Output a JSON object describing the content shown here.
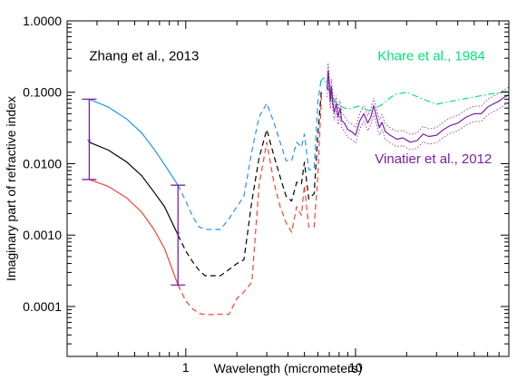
{
  "chart_data": {
    "type": "line",
    "xlabel": "Wavelength (micrometers)",
    "ylabel": "Imaginary part of refractive index",
    "xscale": "log",
    "yscale": "log",
    "xlim": [
      0.2,
      80
    ],
    "ylim": [
      2e-05,
      1.0
    ],
    "x_tick_labels": [
      {
        "value": 1,
        "label": "1"
      },
      {
        "value": 10,
        "label": "10"
      }
    ],
    "y_tick_labels": [
      {
        "value": 1.0,
        "label": "1.0000"
      },
      {
        "value": 0.1,
        "label": "0.1000"
      },
      {
        "value": 0.01,
        "label": "0.0100"
      },
      {
        "value": 0.001,
        "label": "0.0010"
      },
      {
        "value": 0.0001,
        "label": "0.0001"
      }
    ],
    "annotations": [
      {
        "text": "Zhang et al., 2013",
        "color": "#000000",
        "x": 0.27,
        "y": 0.28
      },
      {
        "text": "Khare et al., 1984",
        "color": "#00e676",
        "x": 13.5,
        "y": 0.28
      },
      {
        "text": "Vinatier et al., 2012",
        "color": "#7b1fa2",
        "x": 13.0,
        "y": 0.0102
      }
    ],
    "series": [
      {
        "color": "#2196f3",
        "style": "solid",
        "x": [
          0.27,
          0.35,
          0.45,
          0.55,
          0.65,
          0.75,
          0.9
        ],
        "y": [
          0.08,
          0.062,
          0.042,
          0.027,
          0.016,
          0.0097,
          0.005
        ]
      },
      {
        "color": "#2196f3",
        "style": "dashed",
        "x": [
          0.9,
          1.0,
          1.1,
          1.2,
          1.3,
          1.45,
          1.6,
          1.8,
          2.0,
          2.2,
          2.45,
          2.7,
          3.0,
          3.3,
          3.6,
          3.9,
          4.2,
          4.5,
          4.8,
          5.0,
          5.3,
          5.7,
          6.0,
          6.3
        ],
        "y": [
          0.005,
          0.003,
          0.0018,
          0.0013,
          0.0012,
          0.0012,
          0.0012,
          0.0017,
          0.0025,
          0.0035,
          0.015,
          0.045,
          0.07,
          0.038,
          0.02,
          0.011,
          0.011,
          0.02,
          0.017,
          0.026,
          0.0082,
          0.0085,
          0.075,
          0.16
        ]
      },
      {
        "color": "#000000",
        "style": "solid",
        "x": [
          0.27,
          0.35,
          0.45,
          0.55,
          0.65,
          0.75,
          0.9
        ],
        "y": [
          0.02,
          0.0155,
          0.0105,
          0.0068,
          0.004,
          0.0025,
          0.001
        ]
      },
      {
        "color": "#000000",
        "style": "dashed",
        "x": [
          0.9,
          1.0,
          1.1,
          1.2,
          1.3,
          1.45,
          1.6,
          1.8,
          2.0,
          2.2,
          2.45,
          2.7,
          3.0,
          3.3,
          3.6,
          3.9,
          4.2,
          4.5,
          4.8,
          5.0,
          5.3,
          5.7,
          6.0,
          6.3
        ],
        "y": [
          0.001,
          0.0006,
          0.00042,
          0.00032,
          0.00027,
          0.00027,
          0.00027,
          0.00033,
          0.0004,
          0.00045,
          0.003,
          0.012,
          0.03,
          0.013,
          0.0065,
          0.0035,
          0.003,
          0.0055,
          0.0052,
          0.0105,
          0.0032,
          0.0038,
          0.026,
          0.11
        ]
      },
      {
        "color": "#f44336",
        "style": "solid",
        "x": [
          0.27,
          0.35,
          0.45,
          0.55,
          0.65,
          0.75,
          0.9
        ],
        "y": [
          0.006,
          0.0048,
          0.0033,
          0.0021,
          0.0012,
          0.00065,
          0.0002
        ]
      },
      {
        "color": "#f44336",
        "style": "dashed",
        "x": [
          0.9,
          1.0,
          1.1,
          1.2,
          1.3,
          1.45,
          1.6,
          1.8,
          2.0,
          2.2,
          2.45,
          2.7,
          3.0,
          3.3,
          3.6,
          3.9,
          4.2,
          4.5,
          4.8,
          5.0,
          5.3,
          5.7,
          6.0,
          6.3
        ],
        "y": [
          0.0002,
          0.00012,
          9.2e-05,
          8e-05,
          7.7e-05,
          7.7e-05,
          7.8e-05,
          7.8e-05,
          0.00013,
          0.00016,
          0.00022,
          0.005,
          0.02,
          0.0055,
          0.0025,
          0.0015,
          0.0011,
          0.0025,
          0.0019,
          0.005,
          0.0013,
          0.0013,
          0.007,
          0.09
        ]
      },
      {
        "color": "#00e676",
        "style": "dashdot",
        "x": [
          6.2,
          6.5,
          6.9,
          7.3,
          8.0,
          9.0,
          10.5,
          12.0,
          14.0,
          17.0,
          20.0,
          25.0,
          30.0,
          40.0,
          50.0,
          60.0,
          80.0
        ],
        "y": [
          0.14,
          0.16,
          0.11,
          0.085,
          0.065,
          0.058,
          0.064,
          0.055,
          0.065,
          0.093,
          0.1,
          0.08,
          0.068,
          0.078,
          0.086,
          0.093,
          0.105
        ]
      },
      {
        "color": "#7b1fa2",
        "style": "solid",
        "x": [
          6.8,
          6.9,
          7.0,
          7.1,
          7.2,
          7.35,
          7.5,
          7.7,
          7.9,
          8.1,
          8.3,
          8.6,
          9.0,
          9.5,
          10.0,
          10.6,
          11.2,
          11.8,
          12.3,
          12.8,
          13.3,
          13.8,
          14.3,
          15.0,
          16.0,
          17.5,
          19.0,
          21.0,
          23.0,
          25.0,
          27.0,
          30.0,
          33.0,
          36.0,
          40.0,
          45.0,
          50.0,
          55.0,
          60.0,
          65.0,
          70.0,
          75.0,
          80.0
        ],
        "y": [
          0.11,
          0.2,
          0.13,
          0.075,
          0.12,
          0.07,
          0.052,
          0.07,
          0.045,
          0.06,
          0.04,
          0.037,
          0.03,
          0.028,
          0.025,
          0.04,
          0.05,
          0.037,
          0.045,
          0.065,
          0.045,
          0.032,
          0.038,
          0.028,
          0.025,
          0.022,
          0.023,
          0.02,
          0.021,
          0.026,
          0.024,
          0.025,
          0.03,
          0.034,
          0.037,
          0.045,
          0.05,
          0.05,
          0.062,
          0.069,
          0.075,
          0.085,
          0.092
        ]
      }
    ],
    "error_bars": [
      {
        "color": "#7b1fa2",
        "x": 0.27,
        "y": 0.02,
        "low": 0.006,
        "high": 0.08
      },
      {
        "color": "#7b1fa2",
        "x": 0.9,
        "y": 0.001,
        "low": 0.0002,
        "high": 0.005
      }
    ]
  }
}
